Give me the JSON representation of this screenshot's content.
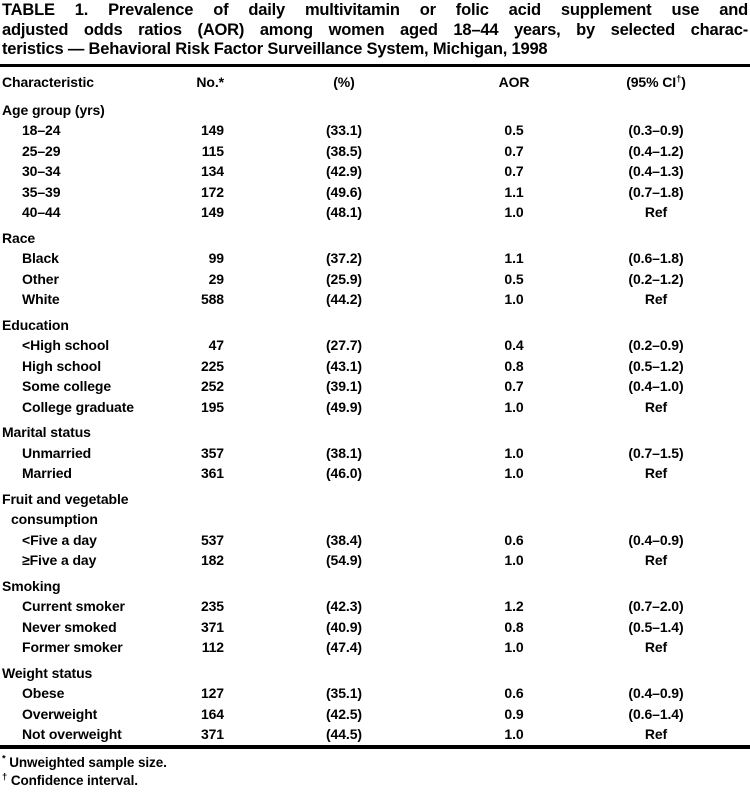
{
  "title_lines": [
    "TABLE 1. Prevalence of daily multivitamin or folic acid supplement use and",
    "adjusted odds ratios (AOR) among women aged 18–44 years, by selected charac-",
    "teristics — Behavioral Risk Factor Surveillance System, Michigan, 1998"
  ],
  "header": {
    "characteristic": "Characteristic",
    "no_text": "No.",
    "no_marker": "*",
    "pct": "(%)",
    "aor": "AOR",
    "ci_pre": "(95% CI",
    "ci_marker": "†",
    "ci_post": ")"
  },
  "sections": [
    {
      "heading_lines": [
        "Age group (yrs)"
      ],
      "rows": [
        {
          "label": "18–24",
          "no": "149",
          "pct": "(33.1)",
          "aor": "0.5",
          "ci": "(0.3–0.9)"
        },
        {
          "label": "25–29",
          "no": "115",
          "pct": "(38.5)",
          "aor": "0.7",
          "ci": "(0.4–1.2)"
        },
        {
          "label": "30–34",
          "no": "134",
          "pct": "(42.9)",
          "aor": "0.7",
          "ci": "(0.4–1.3)"
        },
        {
          "label": "35–39",
          "no": "172",
          "pct": "(49.6)",
          "aor": "1.1",
          "ci": "(0.7–1.8)"
        },
        {
          "label": "40–44",
          "no": "149",
          "pct": "(48.1)",
          "aor": "1.0",
          "ci": "Ref"
        }
      ]
    },
    {
      "heading_lines": [
        "Race"
      ],
      "rows": [
        {
          "label": "Black",
          "no": "99",
          "pct": "(37.2)",
          "aor": "1.1",
          "ci": "(0.6–1.8)"
        },
        {
          "label": "Other",
          "no": "29",
          "pct": "(25.9)",
          "aor": "0.5",
          "ci": "(0.2–1.2)"
        },
        {
          "label": "White",
          "no": "588",
          "pct": "(44.2)",
          "aor": "1.0",
          "ci": "Ref"
        }
      ]
    },
    {
      "heading_lines": [
        "Education"
      ],
      "rows": [
        {
          "label": "<High school",
          "no": "47",
          "pct": "(27.7)",
          "aor": "0.4",
          "ci": "(0.2–0.9)"
        },
        {
          "label": "High school",
          "no": "225",
          "pct": "(43.1)",
          "aor": "0.8",
          "ci": "(0.5–1.2)"
        },
        {
          "label": "Some college",
          "no": "252",
          "pct": "(39.1)",
          "aor": "0.7",
          "ci": "(0.4–1.0)"
        },
        {
          "label": "College graduate",
          "no": "195",
          "pct": "(49.9)",
          "aor": "1.0",
          "ci": "Ref"
        }
      ]
    },
    {
      "heading_lines": [
        "Marital status"
      ],
      "rows": [
        {
          "label": "Unmarried",
          "no": "357",
          "pct": "(38.1)",
          "aor": "1.0",
          "ci": "(0.7–1.5)"
        },
        {
          "label": "Married",
          "no": "361",
          "pct": "(46.0)",
          "aor": "1.0",
          "ci": "Ref"
        }
      ]
    },
    {
      "heading_lines": [
        "Fruit and vegetable",
        "consumption"
      ],
      "rows": [
        {
          "label": "<Five a day",
          "no": "537",
          "pct": "(38.4)",
          "aor": "0.6",
          "ci": "(0.4–0.9)"
        },
        {
          "label": "≥Five a day",
          "no": "182",
          "pct": "(54.9)",
          "aor": "1.0",
          "ci": "Ref"
        }
      ]
    },
    {
      "heading_lines": [
        "Smoking"
      ],
      "rows": [
        {
          "label": "Current smoker",
          "no": "235",
          "pct": "(42.3)",
          "aor": "1.2",
          "ci": "(0.7–2.0)"
        },
        {
          "label": "Never smoked",
          "no": "371",
          "pct": "(40.9)",
          "aor": "0.8",
          "ci": "(0.5–1.4)"
        },
        {
          "label": "Former smoker",
          "no": "112",
          "pct": "(47.4)",
          "aor": "1.0",
          "ci": "Ref"
        }
      ]
    },
    {
      "heading_lines": [
        "Weight status"
      ],
      "rows": [
        {
          "label": "Obese",
          "no": "127",
          "pct": "(35.1)",
          "aor": "0.6",
          "ci": "(0.4–0.9)"
        },
        {
          "label": "Overweight",
          "no": "164",
          "pct": "(42.5)",
          "aor": "0.9",
          "ci": "(0.6–1.4)"
        },
        {
          "label": "Not overweight",
          "no": "371",
          "pct": "(44.5)",
          "aor": "1.0",
          "ci": "Ref"
        }
      ]
    }
  ],
  "footnotes": [
    {
      "marker": "*",
      "text": "Unweighted sample size."
    },
    {
      "marker": "†",
      "text": "Confidence interval."
    }
  ]
}
